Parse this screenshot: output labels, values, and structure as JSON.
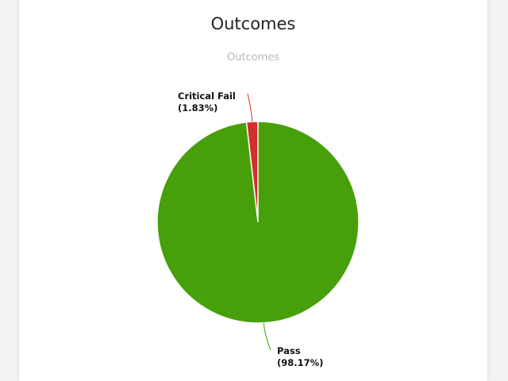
{
  "card": {
    "title": "Outcomes"
  },
  "chart_data": {
    "type": "pie",
    "title": "Outcomes",
    "categories": [
      "Critical Fail",
      "Pass"
    ],
    "values": [
      1.83,
      98.17
    ],
    "unit": "%",
    "colors": [
      "#d32f2f",
      "#47a00a"
    ],
    "labels": [
      "Critical Fail",
      "Pass"
    ],
    "percent_labels": [
      "(1.83%)",
      "(98.17%)"
    ],
    "start_angle": "12 o'clock",
    "direction": "counter-clockwise"
  }
}
